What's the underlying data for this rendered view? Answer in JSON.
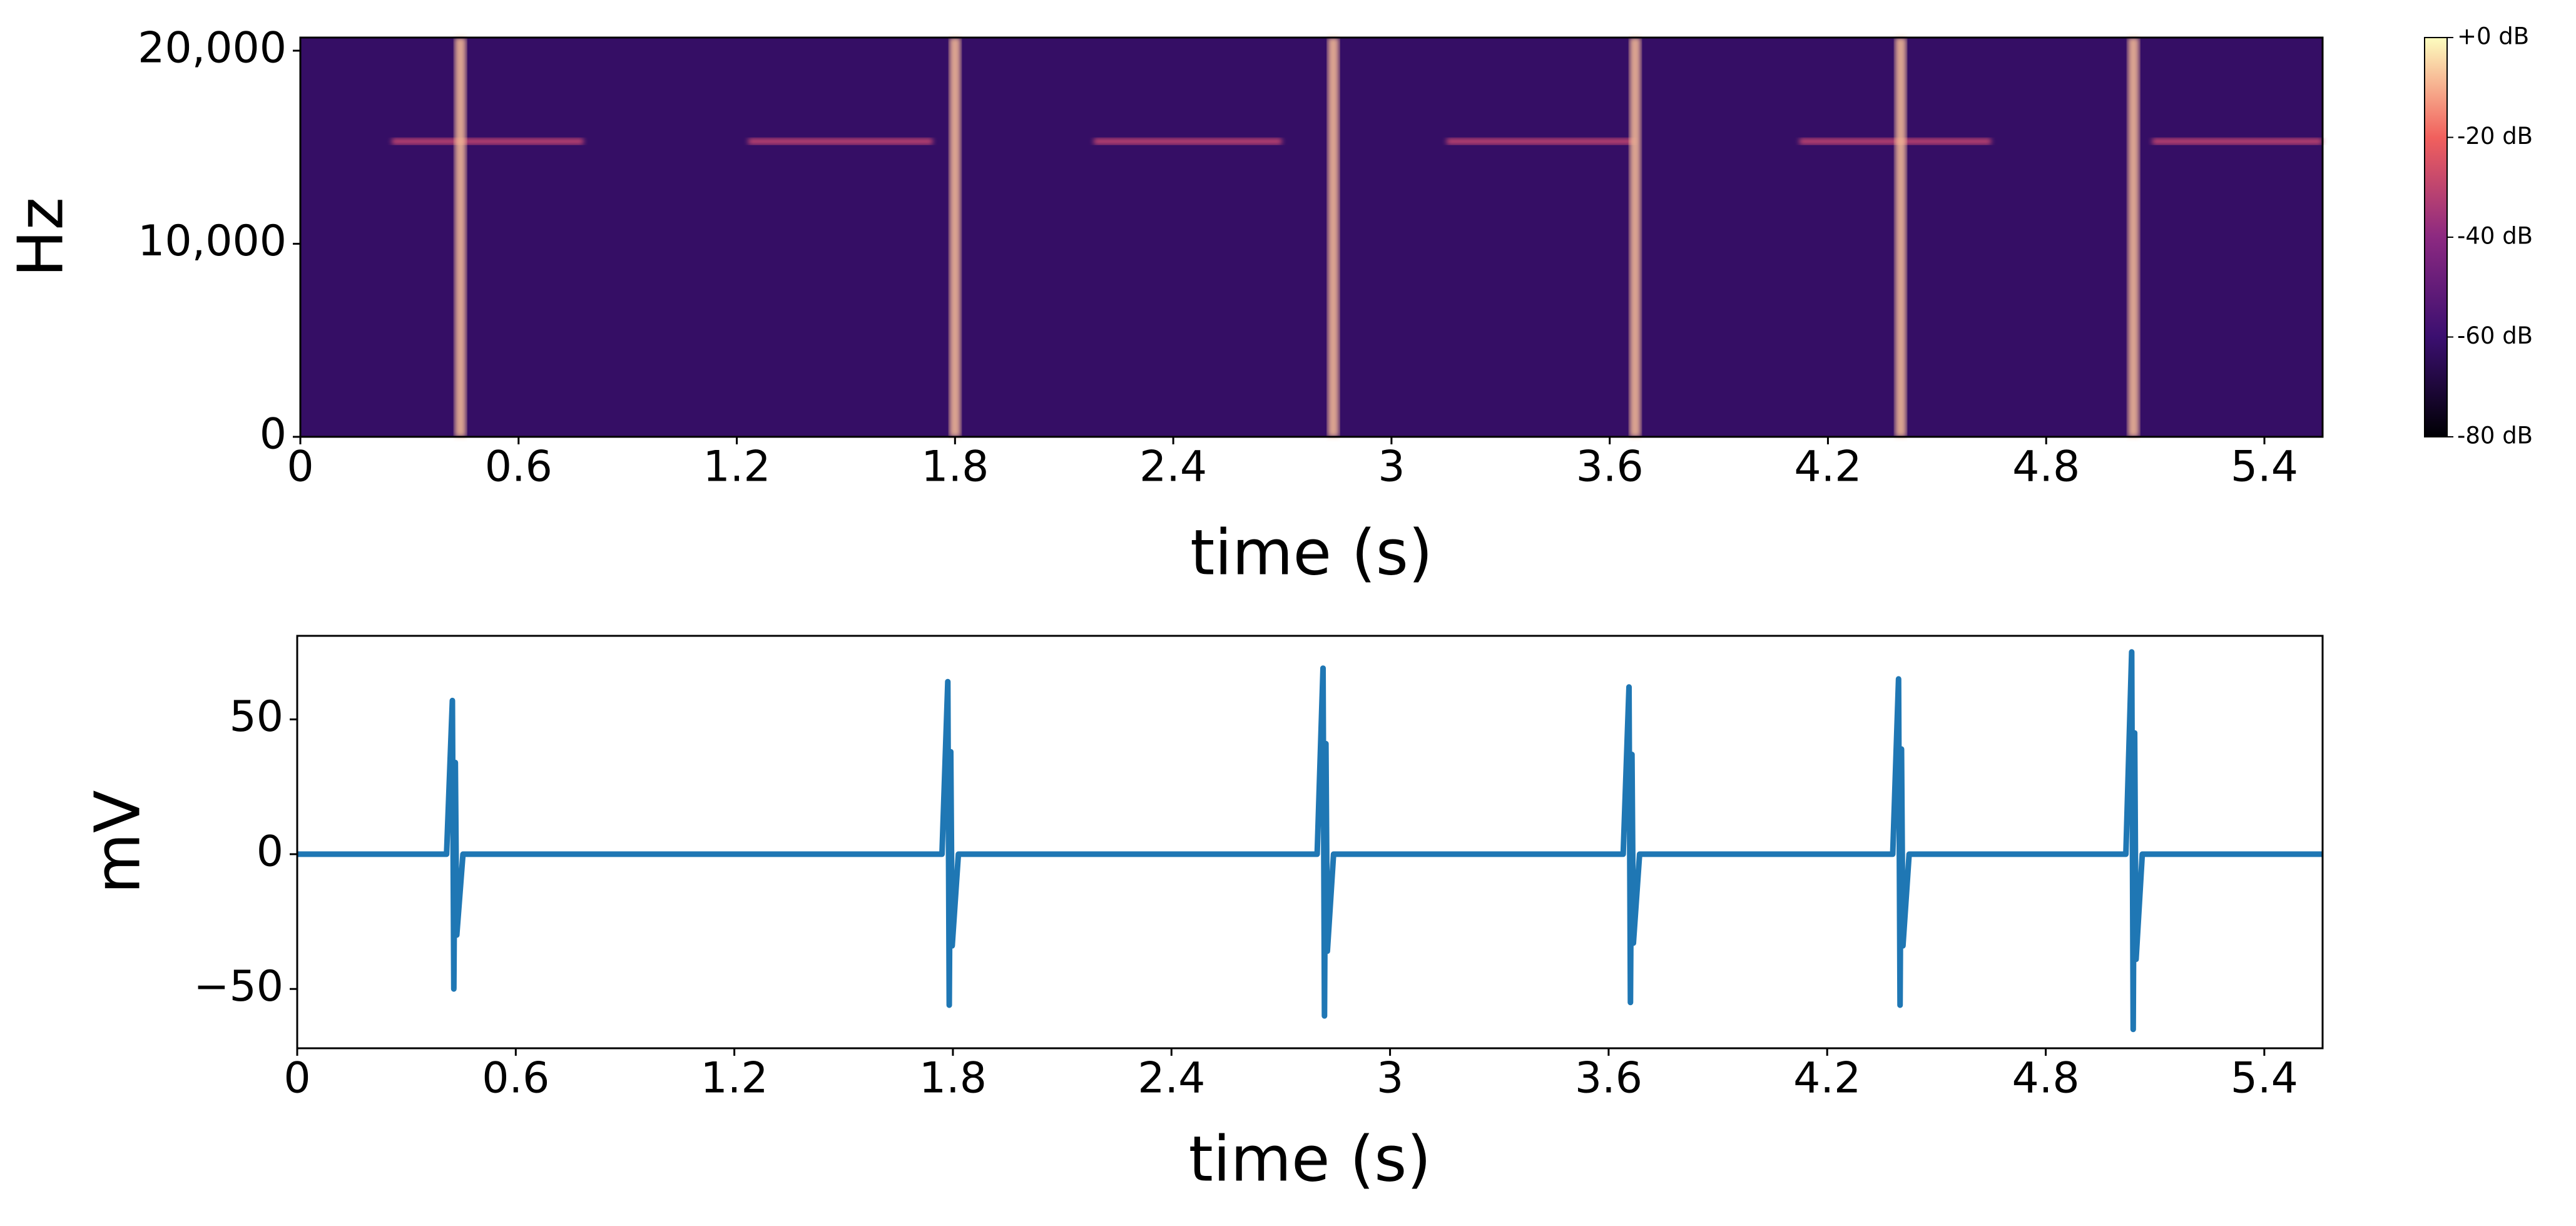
{
  "chart_data": [
    {
      "type": "spectrogram",
      "xlabel": "time (s)",
      "ylabel": "Hz",
      "xlim": [
        0,
        5.56
      ],
      "xticks": [
        0,
        0.6,
        1.2,
        1.8,
        2.4,
        3,
        3.6,
        4.2,
        4.8,
        5.4
      ],
      "ylim": [
        0,
        20680
      ],
      "yticks": [
        {
          "value": 0,
          "label": "0"
        },
        {
          "value": 10000,
          "label": "10,000"
        },
        {
          "value": 20000,
          "label": "20,000"
        }
      ],
      "colormap": "magma",
      "clim": [
        -80,
        0
      ],
      "cticks": [
        {
          "value": 0,
          "label": "+0 dB"
        },
        {
          "value": -20,
          "label": "-20 dB"
        },
        {
          "value": -40,
          "label": "-40 dB"
        },
        {
          "value": -60,
          "label": "-60 dB"
        },
        {
          "value": -80,
          "label": "-80 dB"
        }
      ],
      "background_level": -62,
      "clicks": [
        {
          "time": 0.44,
          "level": -8
        },
        {
          "time": 1.8,
          "level": -8
        },
        {
          "time": 2.84,
          "level": -8
        },
        {
          "time": 3.67,
          "level": -8
        },
        {
          "time": 4.4,
          "level": -8
        },
        {
          "time": 5.04,
          "level": -8
        }
      ],
      "tones": [
        {
          "start": 0.25,
          "end": 0.78,
          "freq": 15300,
          "level": -30
        },
        {
          "start": 1.23,
          "end": 1.74,
          "freq": 15300,
          "level": -30
        },
        {
          "start": 2.18,
          "end": 2.7,
          "freq": 15300,
          "level": -30
        },
        {
          "start": 3.15,
          "end": 3.67,
          "freq": 15300,
          "level": -30
        },
        {
          "start": 4.12,
          "end": 4.65,
          "freq": 15300,
          "level": -30
        },
        {
          "start": 5.09,
          "end": 5.56,
          "freq": 15300,
          "level": -30
        }
      ]
    },
    {
      "type": "line",
      "xlabel": "time (s)",
      "ylabel": "mV",
      "xlim": [
        0,
        5.56
      ],
      "xticks": [
        0,
        0.6,
        1.2,
        1.8,
        2.4,
        3,
        3.6,
        4.2,
        4.8,
        5.4
      ],
      "ylim": [
        -72,
        81
      ],
      "yticks": [
        {
          "value": -50,
          "label": "−50"
        },
        0,
        50
      ],
      "series": [
        {
          "color": "#1f77b4",
          "x": [
            0,
            0.41,
            0.426,
            0.43,
            0.434,
            0.438,
            0.455,
            1.77,
            1.786,
            1.79,
            1.794,
            1.798,
            1.815,
            2.8,
            2.816,
            2.82,
            2.824,
            2.828,
            2.845,
            3.64,
            3.656,
            3.66,
            3.664,
            3.668,
            3.685,
            4.38,
            4.396,
            4.4,
            4.404,
            4.408,
            4.425,
            5.02,
            5.036,
            5.04,
            5.044,
            5.048,
            5.065,
            5.56
          ],
          "values": [
            0,
            0,
            57,
            -50,
            34,
            -30,
            0,
            0,
            64,
            -56,
            38,
            -34,
            0,
            0,
            69,
            -60,
            41,
            -36,
            0,
            0,
            62,
            -55,
            37,
            -33,
            0,
            0,
            65,
            -56,
            39,
            -34,
            0,
            0,
            75,
            -65,
            45,
            -39,
            0,
            0
          ]
        }
      ]
    }
  ]
}
